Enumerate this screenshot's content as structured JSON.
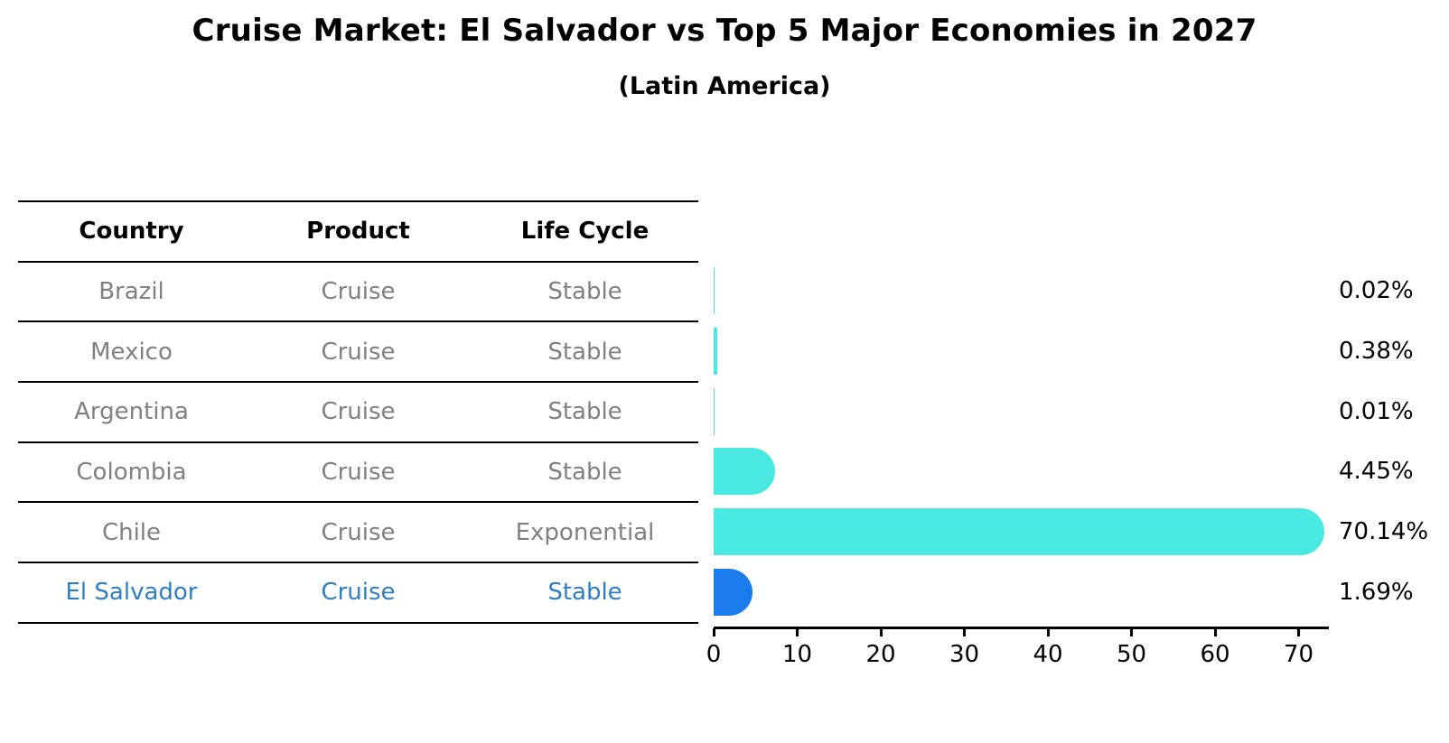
{
  "chart_data": {
    "type": "bar",
    "orientation": "horizontal",
    "title": "Cruise Market: El Salvador vs Top 5 Major Economies in 2027",
    "subtitle": "(Latin America)",
    "table_headers": [
      "Country",
      "Product",
      "Life Cycle"
    ],
    "rows": [
      {
        "country": "Brazil",
        "product": "Cruise",
        "life_cycle": "Stable",
        "share_pct": 0.02,
        "share_label": "0.02%",
        "highlight": false
      },
      {
        "country": "Mexico",
        "product": "Cruise",
        "life_cycle": "Stable",
        "share_pct": 0.38,
        "share_label": "0.38%",
        "highlight": false
      },
      {
        "country": "Argentina",
        "product": "Cruise",
        "life_cycle": "Stable",
        "share_pct": 0.01,
        "share_label": "0.01%",
        "highlight": false
      },
      {
        "country": "Colombia",
        "product": "Cruise",
        "life_cycle": "Stable",
        "share_pct": 4.45,
        "share_label": "4.45%",
        "highlight": false
      },
      {
        "country": "Chile",
        "product": "Cruise",
        "life_cycle": "Exponential",
        "share_pct": 70.14,
        "share_label": "70.14%",
        "highlight": false
      },
      {
        "country": "El Salvador",
        "product": "Cruise",
        "life_cycle": "Stable",
        "share_pct": 1.69,
        "share_label": "1.69%",
        "highlight": true
      }
    ],
    "x_ticks": [
      0,
      10,
      20,
      30,
      40,
      50,
      60,
      70
    ],
    "xlim": [
      0,
      73.5
    ],
    "grid": false,
    "legend": false,
    "colors": {
      "bar": "#49e8e0",
      "highlight_bar": "#1d7ceb",
      "highlight_text": "#2e7fc1",
      "body_text": "#808080",
      "heading_text": "#000000"
    }
  }
}
